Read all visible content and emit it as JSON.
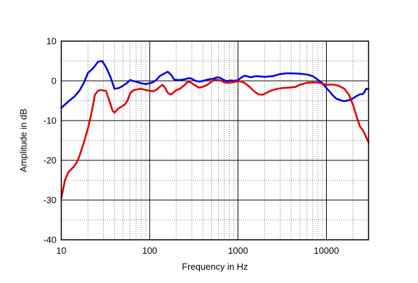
{
  "chart_data": {
    "type": "line",
    "xlabel": "Frequency in Hz",
    "ylabel": "Amplitude in dB",
    "x_scale": "log",
    "xlim": [
      10,
      30000
    ],
    "ylim": [
      -40,
      10
    ],
    "x_ticks": [
      {
        "value": 10,
        "label": "10"
      },
      {
        "value": 100,
        "label": "100"
      },
      {
        "value": 1000,
        "label": "1000"
      },
      {
        "value": 10000,
        "label": "10000"
      }
    ],
    "y_ticks": [
      {
        "value": 10,
        "label": "10"
      },
      {
        "value": 0,
        "label": "0"
      },
      {
        "value": -10,
        "label": "-10"
      },
      {
        "value": -20,
        "label": "-20"
      },
      {
        "value": -30,
        "label": "-30"
      },
      {
        "value": -40,
        "label": "-40"
      }
    ],
    "grid": "major solid, minor dotted",
    "series": [
      {
        "color": "#0000e0",
        "points": [
          [
            10,
            -6.8
          ],
          [
            12,
            -5.2
          ],
          [
            14,
            -4
          ],
          [
            16,
            -2.5
          ],
          [
            18,
            -0.5
          ],
          [
            20,
            2
          ],
          [
            23,
            3.2
          ],
          [
            26,
            4.8
          ],
          [
            29,
            5
          ],
          [
            32,
            3.5
          ],
          [
            36,
            1
          ],
          [
            40,
            -2
          ],
          [
            45,
            -1.8
          ],
          [
            50,
            -1.2
          ],
          [
            55,
            -0.6
          ],
          [
            60,
            0.2
          ],
          [
            70,
            -0.2
          ],
          [
            80,
            -0.6
          ],
          [
            90,
            -0.8
          ],
          [
            100,
            -0.6
          ],
          [
            110,
            -0.3
          ],
          [
            120,
            0.3
          ],
          [
            130,
            1.2
          ],
          [
            145,
            1.8
          ],
          [
            160,
            2.3
          ],
          [
            175,
            1.5
          ],
          [
            190,
            0.3
          ],
          [
            220,
            0.2
          ],
          [
            250,
            0.4
          ],
          [
            280,
            0.7
          ],
          [
            300,
            0.5
          ],
          [
            330,
            0
          ],
          [
            370,
            -0.2
          ],
          [
            420,
            0.1
          ],
          [
            470,
            0.4
          ],
          [
            520,
            0.5
          ],
          [
            580,
            0.9
          ],
          [
            620,
            0.8
          ],
          [
            680,
            0.3
          ],
          [
            750,
            -0.1
          ],
          [
            820,
            0.1
          ],
          [
            900,
            0
          ],
          [
            1000,
            0.2
          ],
          [
            1100,
            0.9
          ],
          [
            1200,
            1.3
          ],
          [
            1400,
            0.9
          ],
          [
            1600,
            1.2
          ],
          [
            1800,
            1.1
          ],
          [
            2000,
            1
          ],
          [
            2500,
            1.2
          ],
          [
            3000,
            1.7
          ],
          [
            3500,
            1.9
          ],
          [
            4000,
            1.9
          ],
          [
            5000,
            1.8
          ],
          [
            6000,
            1.6
          ],
          [
            7000,
            1.2
          ],
          [
            8000,
            0.3
          ],
          [
            9000,
            -0.6
          ],
          [
            10000,
            -1.8
          ],
          [
            11000,
            -2.8
          ],
          [
            12000,
            -3.8
          ],
          [
            13000,
            -4.5
          ],
          [
            15000,
            -5
          ],
          [
            16000,
            -5.1
          ],
          [
            18000,
            -4.9
          ],
          [
            20000,
            -4.4
          ],
          [
            22000,
            -3.8
          ],
          [
            24000,
            -3.4
          ],
          [
            26000,
            -3.3
          ],
          [
            27000,
            -2.8
          ],
          [
            28000,
            -2
          ],
          [
            30000,
            -2.1
          ]
        ]
      },
      {
        "color": "#e00000",
        "points": [
          [
            10,
            -29.5
          ],
          [
            11,
            -25
          ],
          [
            12,
            -23
          ],
          [
            14,
            -21.5
          ],
          [
            15,
            -20.5
          ],
          [
            16,
            -19
          ],
          [
            18,
            -15.5
          ],
          [
            20,
            -12
          ],
          [
            22,
            -8
          ],
          [
            24,
            -3.5
          ],
          [
            26,
            -2.5
          ],
          [
            28,
            -2.3
          ],
          [
            32,
            -2.5
          ],
          [
            35,
            -5
          ],
          [
            38,
            -7.5
          ],
          [
            40,
            -8
          ],
          [
            44,
            -7
          ],
          [
            48,
            -6.5
          ],
          [
            52,
            -6
          ],
          [
            56,
            -5
          ],
          [
            60,
            -3.2
          ],
          [
            65,
            -2.4
          ],
          [
            70,
            -2.2
          ],
          [
            80,
            -2
          ],
          [
            90,
            -2.3
          ],
          [
            100,
            -2.5
          ],
          [
            110,
            -2.6
          ],
          [
            120,
            -2.2
          ],
          [
            130,
            -1.5
          ],
          [
            140,
            -1
          ],
          [
            150,
            -1.8
          ],
          [
            160,
            -3
          ],
          [
            170,
            -3.4
          ],
          [
            180,
            -3.2
          ],
          [
            200,
            -2.3
          ],
          [
            220,
            -2
          ],
          [
            250,
            -1
          ],
          [
            270,
            -0.2
          ],
          [
            290,
            -0.4
          ],
          [
            320,
            -1
          ],
          [
            360,
            -1.7
          ],
          [
            400,
            -1.5
          ],
          [
            450,
            -1
          ],
          [
            500,
            -0.2
          ],
          [
            550,
            0.3
          ],
          [
            600,
            0.2
          ],
          [
            650,
            0
          ],
          [
            700,
            -0.4
          ],
          [
            800,
            -0.5
          ],
          [
            900,
            -0.3
          ],
          [
            1000,
            -0.1
          ],
          [
            1100,
            -0.2
          ],
          [
            1200,
            -0.6
          ],
          [
            1350,
            -1.5
          ],
          [
            1500,
            -2.5
          ],
          [
            1700,
            -3.4
          ],
          [
            1900,
            -3.5
          ],
          [
            2100,
            -3
          ],
          [
            2400,
            -2.4
          ],
          [
            2800,
            -2
          ],
          [
            3200,
            -1.8
          ],
          [
            3800,
            -1.7
          ],
          [
            4500,
            -1.5
          ],
          [
            5000,
            -1
          ],
          [
            6000,
            -0.5
          ],
          [
            7000,
            -0.4
          ],
          [
            8000,
            -0.4
          ],
          [
            9000,
            -0.7
          ],
          [
            10000,
            -1
          ],
          [
            12000,
            -0.9
          ],
          [
            14000,
            -1.3
          ],
          [
            16000,
            -2
          ],
          [
            18000,
            -3.5
          ],
          [
            20000,
            -6
          ],
          [
            22000,
            -9
          ],
          [
            24000,
            -11.5
          ],
          [
            26000,
            -12.5
          ],
          [
            28000,
            -14
          ],
          [
            30000,
            -15.5
          ]
        ]
      }
    ]
  }
}
